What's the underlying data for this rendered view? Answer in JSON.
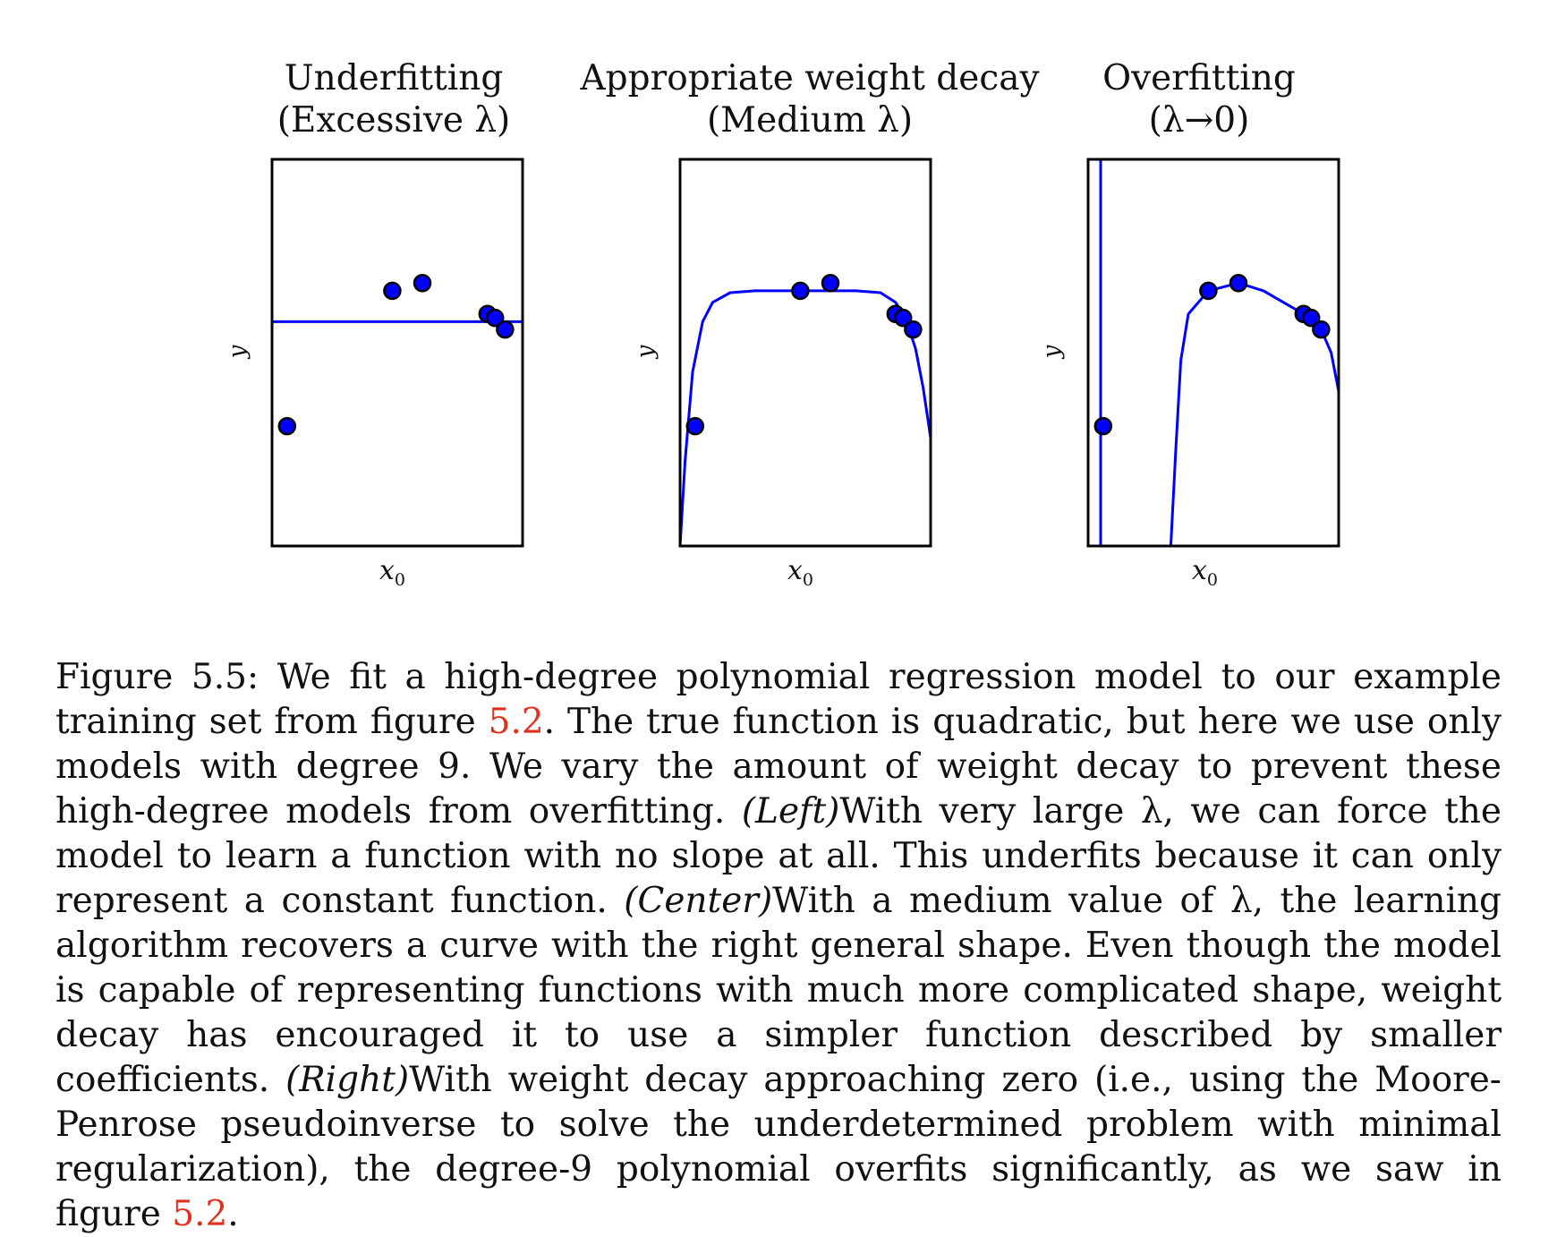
{
  "panels": [
    {
      "title_line1": "Underfitting",
      "title_line2": "(Excessive λ)",
      "ylabel": "y",
      "xlabel_main": "x",
      "xlabel_sub": "0"
    },
    {
      "title_line1": "Appropriate weight decay",
      "title_line2": "(Medium λ)",
      "ylabel": "y",
      "xlabel_main": "x",
      "xlabel_sub": "0"
    },
    {
      "title_line1": "Overfitting",
      "title_line2": "(λ→0)",
      "ylabel": "y",
      "xlabel_main": "x",
      "xlabel_sub": "0"
    }
  ],
  "chart_data": [
    {
      "type": "scatter",
      "title": "Underfitting (Excessive λ)",
      "xlabel": "x₀",
      "ylabel": "y",
      "xlim": [
        0,
        1
      ],
      "ylim": [
        0,
        1
      ],
      "points": [
        [
          0.06,
          0.31
        ],
        [
          0.48,
          0.66
        ],
        [
          0.6,
          0.68
        ],
        [
          0.86,
          0.6
        ],
        [
          0.89,
          0.59
        ],
        [
          0.93,
          0.56
        ]
      ],
      "curve": [
        [
          0,
          0.58
        ],
        [
          1,
          0.58
        ]
      ],
      "colors": {
        "points": "#0000ff",
        "curve": "#0000ff",
        "frame": "#000000"
      }
    },
    {
      "type": "scatter",
      "title": "Appropriate weight decay (Medium λ)",
      "xlabel": "x₀",
      "ylabel": "y",
      "xlim": [
        0,
        1
      ],
      "ylim": [
        0,
        1
      ],
      "points": [
        [
          0.06,
          0.31
        ],
        [
          0.48,
          0.66
        ],
        [
          0.6,
          0.68
        ],
        [
          0.86,
          0.6
        ],
        [
          0.89,
          0.59
        ],
        [
          0.93,
          0.56
        ]
      ],
      "curve": [
        [
          0.0,
          0.0
        ],
        [
          0.02,
          0.22
        ],
        [
          0.05,
          0.45
        ],
        [
          0.09,
          0.58
        ],
        [
          0.13,
          0.63
        ],
        [
          0.2,
          0.655
        ],
        [
          0.3,
          0.66
        ],
        [
          0.5,
          0.66
        ],
        [
          0.7,
          0.66
        ],
        [
          0.8,
          0.655
        ],
        [
          0.86,
          0.63
        ],
        [
          0.9,
          0.59
        ],
        [
          0.94,
          0.51
        ],
        [
          0.97,
          0.41
        ],
        [
          1.0,
          0.28
        ]
      ],
      "colors": {
        "points": "#0000ff",
        "curve": "#0000ff",
        "frame": "#000000"
      }
    },
    {
      "type": "scatter",
      "title": "Overfitting (λ→0)",
      "xlabel": "x₀",
      "ylabel": "y",
      "xlim": [
        0,
        1
      ],
      "ylim": [
        0,
        1
      ],
      "points": [
        [
          0.06,
          0.31
        ],
        [
          0.48,
          0.66
        ],
        [
          0.6,
          0.68
        ],
        [
          0.86,
          0.6
        ],
        [
          0.89,
          0.59
        ],
        [
          0.93,
          0.56
        ]
      ],
      "curve_segments": [
        [
          [
            0.05,
            1.0
          ],
          [
            0.05,
            0.0
          ]
        ],
        [
          [
            0.33,
            0.0
          ],
          [
            0.35,
            0.25
          ],
          [
            0.37,
            0.48
          ],
          [
            0.4,
            0.6
          ],
          [
            0.48,
            0.66
          ],
          [
            0.6,
            0.68
          ],
          [
            0.7,
            0.66
          ],
          [
            0.86,
            0.6
          ],
          [
            0.93,
            0.56
          ],
          [
            0.97,
            0.5
          ],
          [
            1.0,
            0.4
          ]
        ]
      ],
      "colors": {
        "points": "#0000ff",
        "curve": "#0000ff",
        "frame": "#000000"
      }
    }
  ],
  "caption": {
    "label": "Figure 5.5:",
    "part1": "We fit a high-degree polynomial regression model to our example training set from figure",
    "ref1": "5.2",
    "part2": ". The true function is quadratic, but here we use only models with degree 9. We vary the amount of weight decay to prevent these high-degree models from overfitting.",
    "left_tag": "(Left)",
    "part3": "With very large λ, we can force the model to learn a function with no slope at all. This underfits because it can only represent a constant function.",
    "center_tag": "(Center)",
    "part4": "With a medium value of λ, the learning algorithm recovers a curve with the right general shape. Even though the model is capable of representing functions with much more complicated shape, weight decay has encouraged it to use a simpler function described by smaller coefficients.",
    "right_tag": "(Right)",
    "part5": "With weight decay approaching zero (i.e., using the Moore-Penrose pseudoinverse to solve the underdetermined problem with minimal regularization), the degree-9 polynomial overfits significantly, as we saw in figure",
    "ref2": "5.2",
    "part6": "."
  }
}
